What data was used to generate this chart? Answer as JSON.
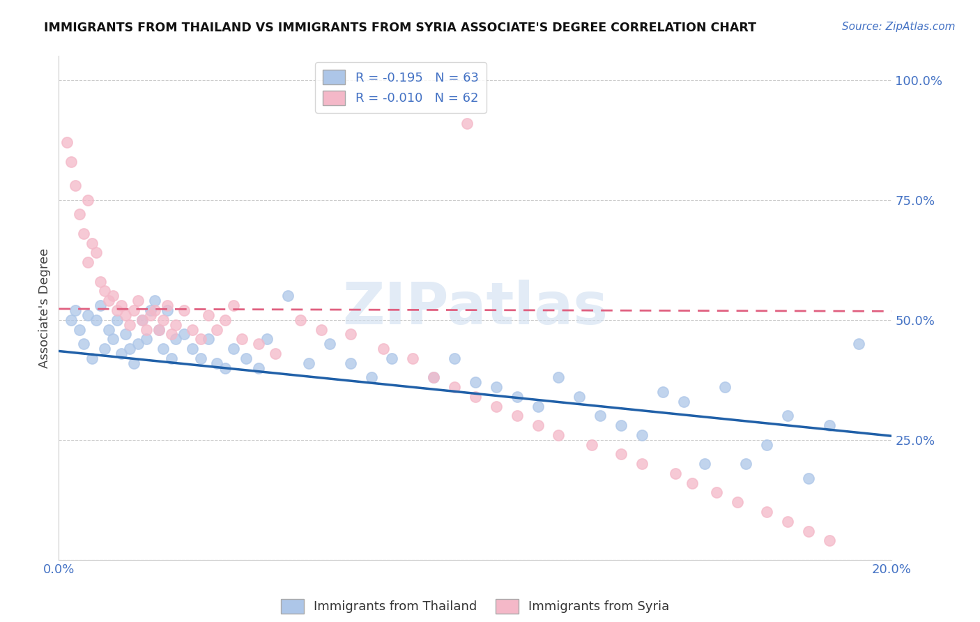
{
  "title": "IMMIGRANTS FROM THAILAND VS IMMIGRANTS FROM SYRIA ASSOCIATE'S DEGREE CORRELATION CHART",
  "source": "Source: ZipAtlas.com",
  "ylabel": "Associate's Degree",
  "r_thailand": -0.195,
  "n_thailand": 63,
  "r_syria": -0.01,
  "n_syria": 62,
  "color_thailand": "#adc6e8",
  "color_syria": "#f4b8c8",
  "line_color_thailand": "#2060a8",
  "line_color_syria": "#e06080",
  "xmin": 0.0,
  "xmax": 0.2,
  "ymin": 0.0,
  "ymax": 1.05,
  "watermark": "ZIPatlas",
  "th_line_x0": 0.0,
  "th_line_y0": 0.435,
  "th_line_x1": 0.2,
  "th_line_y1": 0.258,
  "sy_line_x0": 0.0,
  "sy_line_y0": 0.523,
  "sy_line_x1": 0.2,
  "sy_line_y1": 0.518,
  "th_x": [
    0.003,
    0.004,
    0.005,
    0.006,
    0.007,
    0.008,
    0.009,
    0.01,
    0.011,
    0.012,
    0.013,
    0.014,
    0.015,
    0.016,
    0.017,
    0.018,
    0.019,
    0.02,
    0.021,
    0.022,
    0.023,
    0.024,
    0.025,
    0.026,
    0.027,
    0.028,
    0.03,
    0.032,
    0.034,
    0.036,
    0.038,
    0.04,
    0.042,
    0.045,
    0.048,
    0.05,
    0.055,
    0.06,
    0.065,
    0.07,
    0.075,
    0.08,
    0.09,
    0.095,
    0.1,
    0.105,
    0.11,
    0.115,
    0.12,
    0.125,
    0.13,
    0.135,
    0.14,
    0.145,
    0.15,
    0.155,
    0.16,
    0.165,
    0.17,
    0.175,
    0.18,
    0.185,
    0.192
  ],
  "th_y": [
    0.5,
    0.52,
    0.48,
    0.45,
    0.51,
    0.42,
    0.5,
    0.53,
    0.44,
    0.48,
    0.46,
    0.5,
    0.43,
    0.47,
    0.44,
    0.41,
    0.45,
    0.5,
    0.46,
    0.52,
    0.54,
    0.48,
    0.44,
    0.52,
    0.42,
    0.46,
    0.47,
    0.44,
    0.42,
    0.46,
    0.41,
    0.4,
    0.44,
    0.42,
    0.4,
    0.46,
    0.55,
    0.41,
    0.45,
    0.41,
    0.38,
    0.42,
    0.38,
    0.42,
    0.37,
    0.36,
    0.34,
    0.32,
    0.38,
    0.34,
    0.3,
    0.28,
    0.26,
    0.35,
    0.33,
    0.2,
    0.36,
    0.2,
    0.24,
    0.3,
    0.17,
    0.28,
    0.45
  ],
  "sy_x": [
    0.002,
    0.003,
    0.004,
    0.005,
    0.006,
    0.007,
    0.008,
    0.009,
    0.01,
    0.011,
    0.012,
    0.013,
    0.014,
    0.015,
    0.016,
    0.017,
    0.018,
    0.019,
    0.02,
    0.021,
    0.022,
    0.023,
    0.024,
    0.025,
    0.026,
    0.027,
    0.028,
    0.03,
    0.032,
    0.034,
    0.036,
    0.038,
    0.04,
    0.042,
    0.044,
    0.048,
    0.052,
    0.058,
    0.063,
    0.07,
    0.078,
    0.085,
    0.09,
    0.095,
    0.1,
    0.105,
    0.11,
    0.115,
    0.12,
    0.128,
    0.135,
    0.14,
    0.148,
    0.152,
    0.158,
    0.163,
    0.17,
    0.175,
    0.18,
    0.185,
    0.098,
    0.007
  ],
  "sy_y": [
    0.87,
    0.83,
    0.78,
    0.72,
    0.68,
    0.75,
    0.66,
    0.64,
    0.58,
    0.56,
    0.54,
    0.55,
    0.52,
    0.53,
    0.51,
    0.49,
    0.52,
    0.54,
    0.5,
    0.48,
    0.51,
    0.52,
    0.48,
    0.5,
    0.53,
    0.47,
    0.49,
    0.52,
    0.48,
    0.46,
    0.51,
    0.48,
    0.5,
    0.53,
    0.46,
    0.45,
    0.43,
    0.5,
    0.48,
    0.47,
    0.44,
    0.42,
    0.38,
    0.36,
    0.34,
    0.32,
    0.3,
    0.28,
    0.26,
    0.24,
    0.22,
    0.2,
    0.18,
    0.16,
    0.14,
    0.12,
    0.1,
    0.08,
    0.06,
    0.04,
    0.91,
    0.62
  ]
}
